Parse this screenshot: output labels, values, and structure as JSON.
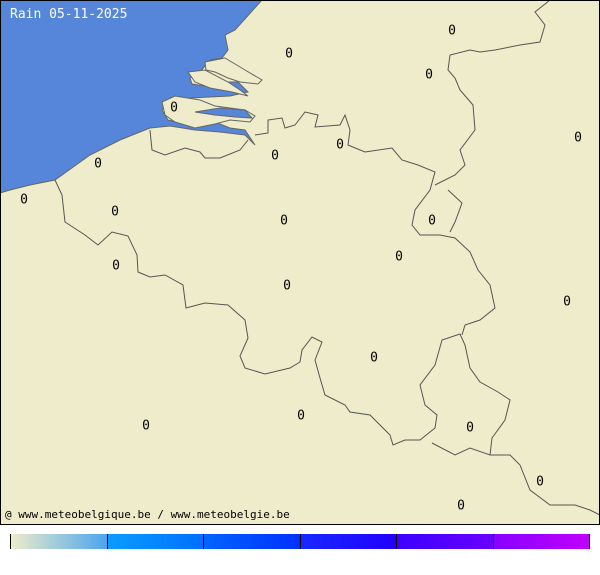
{
  "title": "Rain 05-11-2025",
  "credit": "@ www.meteobelgique.be / www.meteobelgie.be",
  "colors": {
    "sea": "#5686d9",
    "land": "#eeecca",
    "border": "#555555"
  },
  "station_values": [
    "0",
    "0",
    "0",
    "0",
    "0",
    "0",
    "0",
    "0",
    "0",
    "0",
    "0",
    "0",
    "0",
    "0",
    "0",
    "0",
    "0",
    "0",
    "0",
    "0",
    "0",
    "0"
  ],
  "colorbar": [
    [
      "#eeecca",
      "#4aa6ee"
    ],
    [
      "#0a9cff",
      "#0070ff"
    ],
    [
      "#0064ff",
      "#0030ff"
    ],
    [
      "#1828ff",
      "#2200ff"
    ],
    [
      "#3c00ff",
      "#6a00ff"
    ],
    [
      "#8800ff",
      "#c000ff"
    ]
  ]
}
